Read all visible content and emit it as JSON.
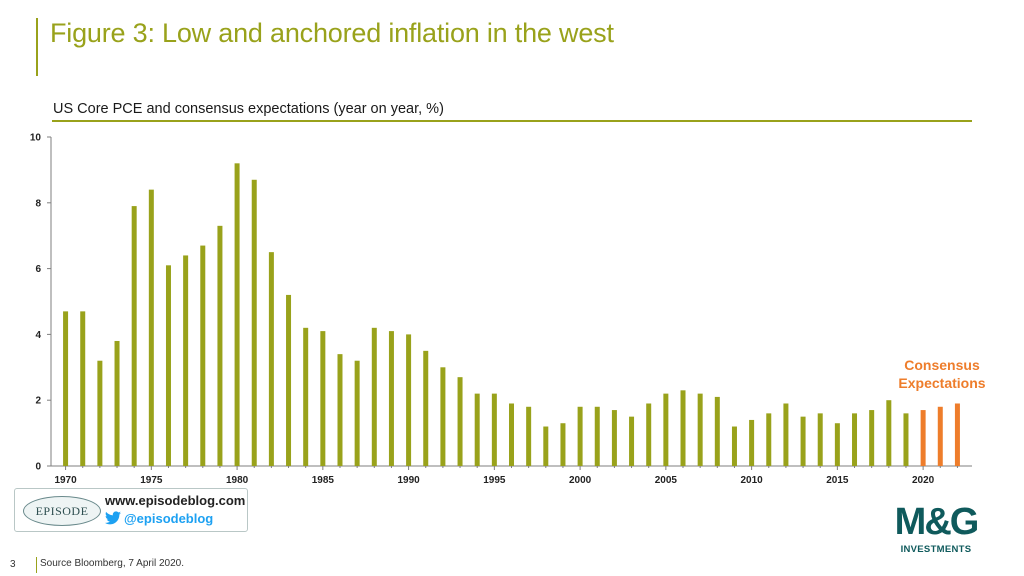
{
  "header": {
    "title": "Figure 3: Low and anchored inflation in the west",
    "subtitle": "US Core PCE and consensus expectations (year on year, %)"
  },
  "annotation": {
    "consensus_line1": "Consensus",
    "consensus_line2": "Expectations"
  },
  "footer": {
    "page_number": "3",
    "source": "Source Bloomberg, 7 April 2020."
  },
  "branding": {
    "episode_logo": "EPISODE",
    "episode_url": "www.episodeblog.com",
    "episode_handle": "@episodeblog",
    "mg_logo": "M&G",
    "mg_sub": "INVESTMENTS"
  },
  "colors": {
    "actual": "#99a21b",
    "expectations": "#ee7d2b",
    "axis": "#7f7f7f",
    "brand_teal": "#0f5a5c"
  },
  "chart_data": {
    "type": "bar",
    "title": "US Core PCE and consensus expectations (year on year, %)",
    "ylim": [
      0,
      10
    ],
    "yticks": [
      0,
      2,
      4,
      6,
      8,
      10
    ],
    "xticks": [
      "1970",
      "1975",
      "1980",
      "1985",
      "1990",
      "1995",
      "2000",
      "2005",
      "2010",
      "2015",
      "2020"
    ],
    "grid": false,
    "legend": "none",
    "series": [
      {
        "kind": "actual",
        "x": [
          1970,
          1971,
          1972,
          1973,
          1974,
          1975,
          1976,
          1977,
          1978,
          1979,
          1980,
          1981,
          1982,
          1983,
          1984,
          1985,
          1986,
          1987,
          1988,
          1989,
          1990,
          1991,
          1992,
          1993,
          1994,
          1995,
          1996,
          1997,
          1998,
          1999,
          2000,
          2001,
          2002,
          2003,
          2004,
          2005,
          2006,
          2007,
          2008,
          2009,
          2010,
          2011,
          2012,
          2013,
          2014,
          2015,
          2016,
          2017,
          2018,
          2019
        ],
        "values": [
          4.7,
          4.7,
          3.2,
          3.8,
          7.9,
          8.4,
          6.1,
          6.4,
          6.7,
          7.3,
          9.2,
          8.7,
          6.5,
          5.2,
          4.2,
          4.1,
          3.4,
          3.2,
          4.2,
          4.1,
          4.0,
          3.5,
          3.0,
          2.7,
          2.2,
          2.2,
          1.9,
          1.8,
          1.2,
          1.3,
          1.8,
          1.8,
          1.7,
          1.5,
          1.9,
          2.2,
          2.3,
          2.2,
          2.1,
          1.2,
          1.4,
          1.6,
          1.9,
          1.5,
          1.6,
          1.3,
          1.6,
          1.7,
          2.0,
          1.6
        ]
      },
      {
        "kind": "expectations",
        "x": [
          2020,
          2021,
          2022
        ],
        "values": [
          1.7,
          1.8,
          1.9
        ]
      }
    ]
  }
}
